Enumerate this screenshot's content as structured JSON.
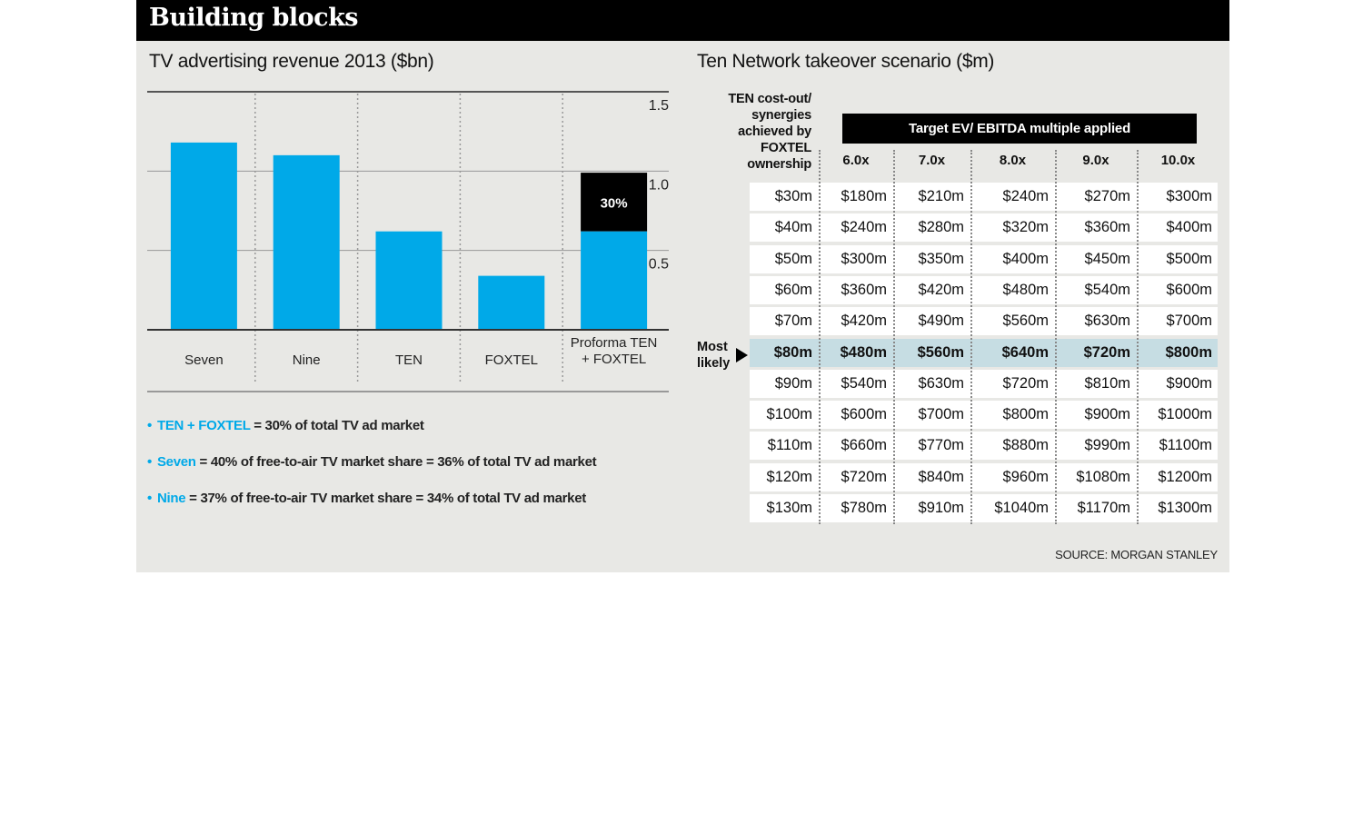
{
  "header": {
    "title": "Building blocks"
  },
  "chart_data": {
    "type": "bar",
    "title": "TV advertising revenue 2013 ($bn)",
    "categories": [
      "Seven",
      "Nine",
      "TEN",
      "FOXTEL",
      "Proforma TEN + FOXTEL"
    ],
    "values": [
      1.18,
      1.1,
      0.62,
      0.34,
      0.99
    ],
    "stack_base_value": 0.62,
    "stack_label": "30%",
    "yticks": [
      "1.5",
      "1.0",
      "0.5"
    ],
    "ylim": [
      0,
      1.5
    ],
    "grid": true,
    "colors": {
      "bar": "#00a9e8",
      "stack_top": "#000000"
    }
  },
  "notes": [
    {
      "highlight": "TEN + FOXTEL",
      "text": " = 30% of  total TV ad market"
    },
    {
      "highlight": "Seven",
      "text": " = 40% of free-to-air TV market share = 36% of total TV ad market"
    },
    {
      "highlight": "Nine",
      "text": " = 37% of free-to-air TV market share = 34% of total TV ad market"
    }
  ],
  "table": {
    "title": "Ten Network takeover scenario ($m)",
    "row_header": [
      "TEN cost-out/",
      "synergies",
      "achieved by",
      "FOXTEL",
      "ownership"
    ],
    "multiple_header": "Target EV/ EBITDA multiple applied",
    "columns": [
      "6.0x",
      "7.0x",
      "8.0x",
      "9.0x",
      "10.0x"
    ],
    "most_likely_label": [
      "Most",
      "likely"
    ],
    "most_likely_row": 5,
    "rows": [
      [
        "$30m",
        "$180m",
        "$210m",
        "$240m",
        "$270m",
        "$300m"
      ],
      [
        "$40m",
        "$240m",
        "$280m",
        "$320m",
        "$360m",
        "$400m"
      ],
      [
        "$50m",
        "$300m",
        "$350m",
        "$400m",
        "$450m",
        "$500m"
      ],
      [
        "$60m",
        "$360m",
        "$420m",
        "$480m",
        "$540m",
        "$600m"
      ],
      [
        "$70m",
        "$420m",
        "$490m",
        "$560m",
        "$630m",
        "$700m"
      ],
      [
        "$80m",
        "$480m",
        "$560m",
        "$640m",
        "$720m",
        "$800m"
      ],
      [
        "$90m",
        "$540m",
        "$630m",
        "$720m",
        "$810m",
        "$900m"
      ],
      [
        "$100m",
        "$600m",
        "$700m",
        "$800m",
        "$900m",
        "$1000m"
      ],
      [
        "$110m",
        "$660m",
        "$770m",
        "$880m",
        "$990m",
        "$1100m"
      ],
      [
        "$120m",
        "$720m",
        "$840m",
        "$960m",
        "$1080m",
        "$1200m"
      ],
      [
        "$130m",
        "$780m",
        "$910m",
        "$1040m",
        "$1170m",
        "$1300m"
      ]
    ]
  },
  "source": "SOURCE: MORGAN STANLEY"
}
